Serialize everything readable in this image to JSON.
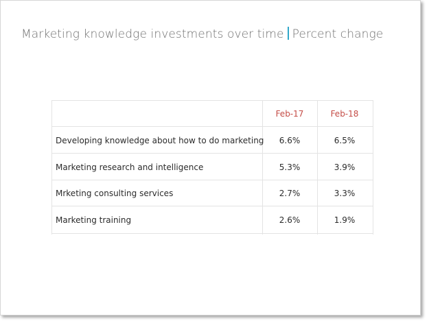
{
  "title": "Marketing knowledge investments over time",
  "subtitle": "Percent change",
  "table": {
    "columns": [
      "Feb-17",
      "Feb-18"
    ],
    "rows": [
      {
        "label": "Developing knowledge about how to do marketing",
        "values": [
          "6.6%",
          "6.5%"
        ]
      },
      {
        "label": "Marketing research and intelligence",
        "values": [
          "5.3%",
          "3.9%"
        ]
      },
      {
        "label": "Mrketing consulting services",
        "values": [
          "2.7%",
          "3.3%"
        ]
      },
      {
        "label": "Marketing training",
        "values": [
          "2.6%",
          "1.9%"
        ]
      }
    ]
  },
  "colors": {
    "header_text": "#c44c46",
    "title_separator": "#2fa7c9"
  }
}
